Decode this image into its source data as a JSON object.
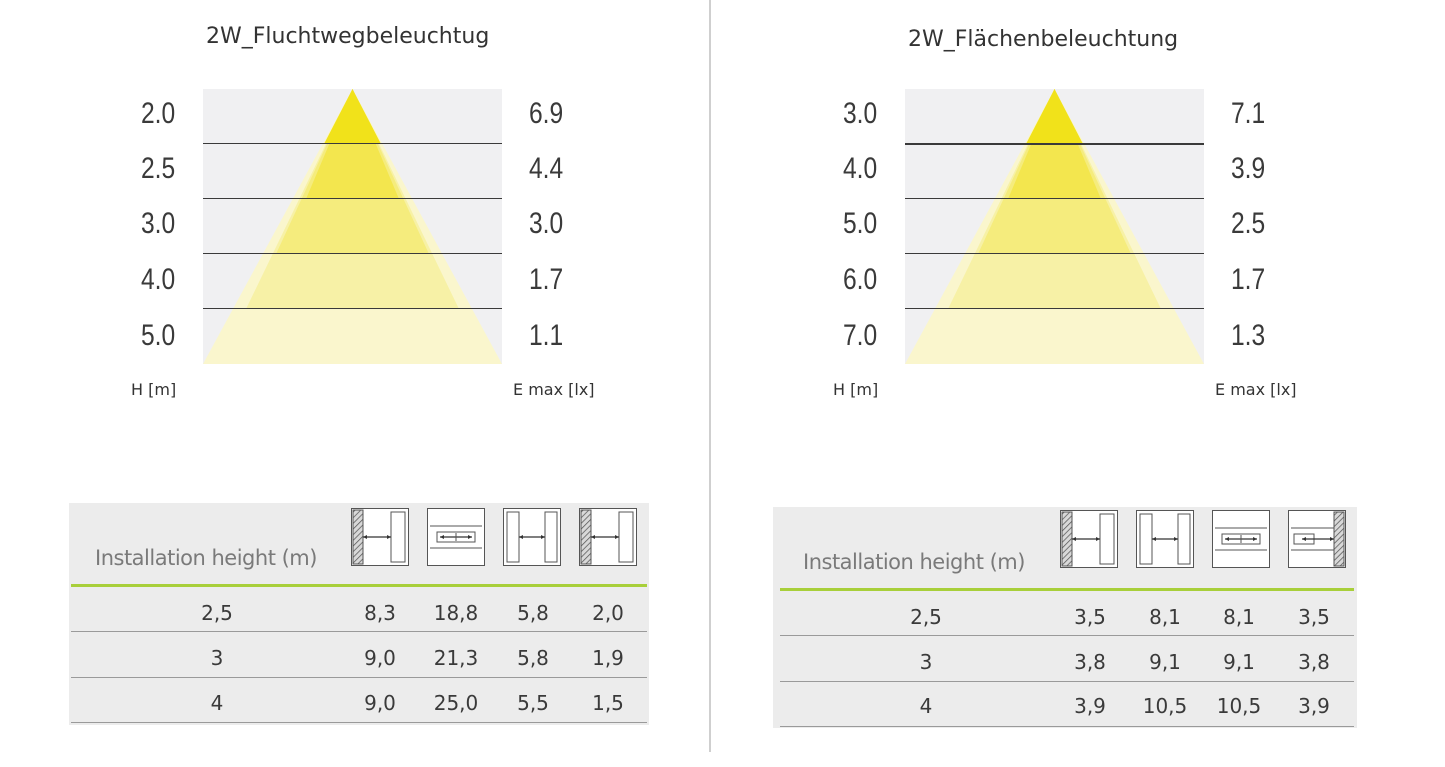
{
  "left": {
    "title": "2W_Fluchtwegbeleuchtug",
    "heights": [
      "2.0",
      "2.5",
      "3.0",
      "4.0",
      "5.0"
    ],
    "emax": [
      "6.9",
      "4.4",
      "3.0",
      "1.7",
      "1.1"
    ],
    "h_label": "H [m]",
    "e_label": "E max [lx]",
    "table": {
      "header_label": "Installation height (m)",
      "icons": [
        "wall-corridor-icon",
        "open-area-icon",
        "corridor-icon",
        "wall-corridor-icon"
      ],
      "rows": [
        {
          "height": "2,5",
          "values": [
            "8,3",
            "18,8",
            "5,8",
            "2,0"
          ]
        },
        {
          "height": "3",
          "values": [
            "9,0",
            "21,3",
            "5,8",
            "1,9"
          ]
        },
        {
          "height": "4",
          "values": [
            "9,0",
            "25,0",
            "5,5",
            "1,5"
          ]
        }
      ]
    }
  },
  "right": {
    "title": "2W_Flächenbeleuchtung",
    "heights": [
      "3.0",
      "4.0",
      "5.0",
      "6.0",
      "7.0"
    ],
    "emax": [
      "7.1",
      "3.9",
      "2.5",
      "1.7",
      "1.3"
    ],
    "h_label": "H [m]",
    "e_label": "E max [lx]",
    "table": {
      "header_label": "Installation height (m)",
      "icons": [
        "wall-corridor-icon",
        "corridor-icon",
        "open-area-icon",
        "wall-end-icon"
      ],
      "rows": [
        {
          "height": "2,5",
          "values": [
            "3,5",
            "8,1",
            "8,1",
            "3,5"
          ]
        },
        {
          "height": "3",
          "values": [
            "3,8",
            "9,1",
            "9,1",
            "3,8"
          ]
        },
        {
          "height": "4",
          "values": [
            "3,9",
            "10,5",
            "10,5",
            "3,9"
          ]
        }
      ]
    }
  },
  "colors": {
    "band1": "#f1e21a",
    "band2": "#f3e64e",
    "band3": "#f5ec7d",
    "band4": "#f7f1a6",
    "band5": "#faf6cd",
    "accent_green": "#a8cf3a"
  }
}
